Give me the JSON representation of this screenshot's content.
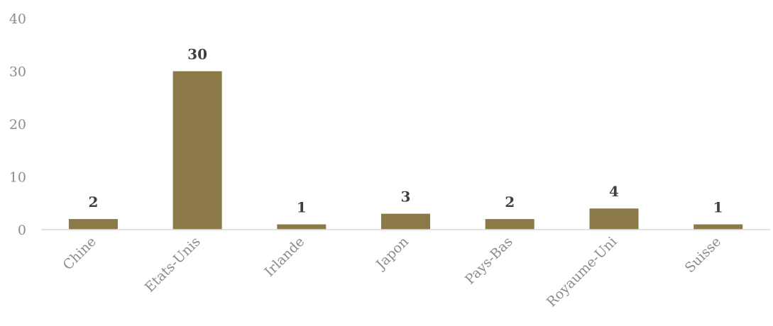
{
  "chart_data": {
    "type": "bar",
    "title": "",
    "xlabel": "",
    "ylabel": "",
    "categories": [
      "Chine",
      "Etats-Unis",
      "Irlande",
      "Japon",
      "Pays-Bas",
      "Royaume-Uni",
      "Suisse"
    ],
    "values": [
      2,
      30,
      1,
      3,
      2,
      4,
      1
    ],
    "data_labels": [
      "2",
      "30",
      "1",
      "3",
      "2",
      "4",
      "1"
    ],
    "ylim": [
      0,
      40
    ],
    "yticks": [
      0,
      10,
      20,
      30,
      40
    ],
    "ytick_labels": [
      "0",
      "10",
      "20",
      "30",
      "40"
    ],
    "grid": false,
    "legend": "none",
    "bar_color": "#8b7a48",
    "axis_color": "#d9d9d9",
    "tick_label_color": "#8c8c8c",
    "data_label_color": "#404040"
  }
}
